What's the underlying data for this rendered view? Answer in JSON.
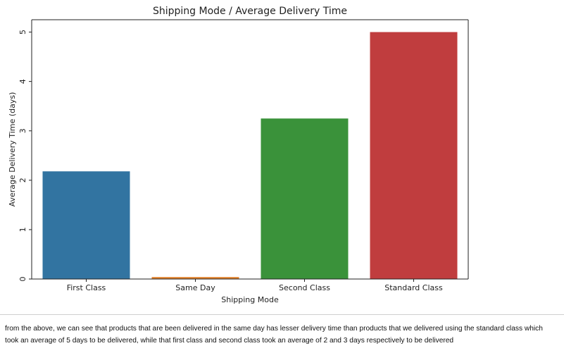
{
  "chart_data": {
    "type": "bar",
    "title": "Shipping Mode / Average Delivery Time",
    "xlabel": "Shipping Mode",
    "ylabel": "Average Delivery Time (days)",
    "categories": [
      "First Class",
      "Same Day",
      "Second Class",
      "Standard Class"
    ],
    "values": [
      2.18,
      0.04,
      3.25,
      5.0
    ],
    "colors": [
      "#3274a1",
      "#e1812c",
      "#3a923a",
      "#c03d3e"
    ],
    "ylim": [
      0,
      5.25
    ],
    "yticks": [
      0,
      1,
      2,
      3,
      4,
      5
    ],
    "grid": false
  },
  "note": {
    "text": "from the above, we can see that products that are been delivered in the same day has lesser delivery time than products that we delivered using the standard class which took an average of 5 days to be delivered, while that first class and second class took an average of 2 and 3 days respectively to be delivered"
  }
}
